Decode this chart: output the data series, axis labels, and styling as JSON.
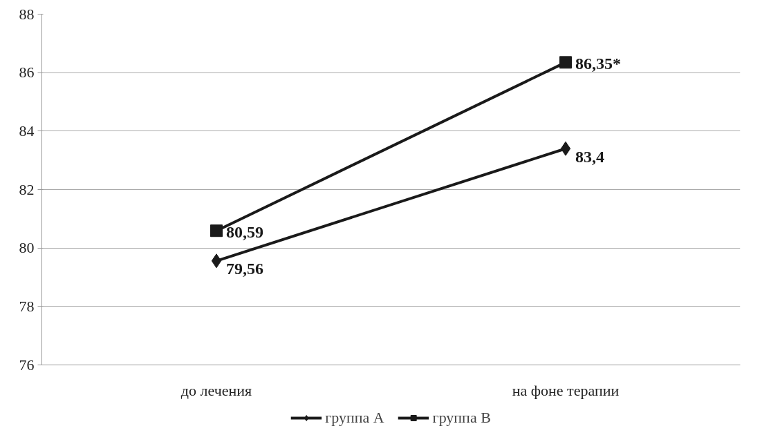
{
  "chart_data": {
    "type": "line",
    "categories": [
      "до лечения",
      "на фоне терапии"
    ],
    "series": [
      {
        "name": "группа А",
        "color": "#1a1a1a",
        "marker": "diamond",
        "values": [
          79.56,
          83.4
        ],
        "value_labels": [
          "79,56",
          "83,4"
        ]
      },
      {
        "name": "группа В",
        "color": "#1a1a1a",
        "marker": "square",
        "values": [
          80.59,
          86.35
        ],
        "value_labels": [
          "80,59",
          "86,35*"
        ]
      }
    ],
    "ylim": [
      76,
      88
    ],
    "yticks": [
      76,
      78,
      80,
      82,
      84,
      86,
      88
    ],
    "grid": "y",
    "legend": "bottom",
    "line_style": "solid"
  }
}
